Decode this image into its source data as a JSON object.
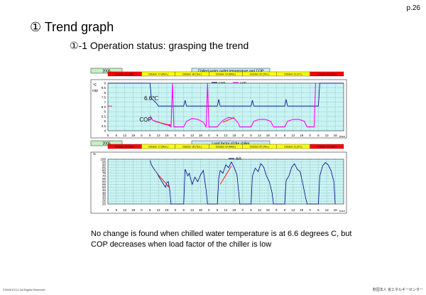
{
  "page_number": "p.26",
  "title": "① Trend graph",
  "subtitle": "①-1 Operation status: grasping the trend",
  "conclusion": "No change is found when chilled water temperature is at 6.6 degrees C, but COP decreases when load factor of the chiller is low",
  "copyright": "©2008 ECCJ All Rights Reserved",
  "org": "財団法人 省エネルギーセンター",
  "colors": {
    "weekday": "#ffff00",
    "weekend": "#ff0000",
    "year_box": "#c4f0c4",
    "title_box": "#ccecff",
    "plot_bg": "#c8f4f4",
    "cws_line": "#00008b",
    "cop_line": "#ff00ff",
    "annotation": "#ff0000"
  },
  "chart_data": [
    {
      "type": "line",
      "year": "2005",
      "title": "Chilled water outlet temperature and COP",
      "days": [
        "October 15 (Sat.)",
        "October 17 (Mon.)",
        "October 18 (Tue.)",
        "October 19 (Wed.)",
        "October 20 (Thu.)",
        "October 21 (Fri.)",
        "October 22 (Sat.)"
      ],
      "weekend_days": [
        0,
        6
      ],
      "ylabel_unit": "℃",
      "ylabel": "cop",
      "xlabel": "hour",
      "x_ticks": [
        "0",
        "6",
        "12",
        "18",
        "0",
        "6",
        "12",
        "18",
        "0",
        "6",
        "12",
        "18",
        "0",
        "6",
        "12",
        "18",
        "0",
        "6",
        "12",
        "18",
        "0",
        "6",
        "12",
        "18",
        "0",
        "6",
        "12",
        "18"
      ],
      "y_ticks": [
        "9",
        "8.5",
        "8",
        "7.5",
        "7",
        "6.5",
        "6",
        "5.5",
        "5",
        "4.5",
        "4"
      ],
      "ylim": [
        4,
        9
      ],
      "legend": [
        "CWS",
        "COP"
      ],
      "annotations": [
        "6.6℃",
        "COP"
      ],
      "series": [
        {
          "name": "CWS",
          "points": [
            [
              0,
              9
            ],
            [
              24,
              9
            ],
            [
              30,
              9
            ],
            [
              31,
              7.4
            ],
            [
              34,
              7.0
            ],
            [
              36,
              6.6
            ],
            [
              48,
              6.6
            ],
            [
              54,
              6.6
            ],
            [
              55,
              7.2
            ],
            [
              56,
              6.6
            ],
            [
              72,
              6.6
            ],
            [
              78,
              6.6
            ],
            [
              79,
              7.3
            ],
            [
              80,
              6.6
            ],
            [
              96,
              6.6
            ],
            [
              102,
              6.6
            ],
            [
              103,
              7.2
            ],
            [
              104,
              6.6
            ],
            [
              120,
              6.6
            ],
            [
              126,
              6.6
            ],
            [
              127,
              7.3
            ],
            [
              128,
              6.6
            ],
            [
              144,
              6.6
            ],
            [
              150,
              6.6
            ],
            [
              151,
              9
            ],
            [
              168,
              9
            ]
          ]
        },
        {
          "name": "COP",
          "points": [
            [
              30,
              5.6
            ],
            [
              32,
              5.1
            ],
            [
              36,
              4.9
            ],
            [
              40,
              4.7
            ],
            [
              43,
              4.6
            ],
            [
              45,
              4.4
            ],
            [
              46,
              9
            ],
            [
              47,
              4.4
            ],
            [
              54,
              4.4
            ],
            [
              56,
              5.0
            ],
            [
              60,
              5.3
            ],
            [
              64,
              5.2
            ],
            [
              68,
              4.9
            ],
            [
              70,
              4.4
            ],
            [
              71,
              9
            ],
            [
              72,
              4.4
            ],
            [
              78,
              4.4
            ],
            [
              80,
              4.8
            ],
            [
              82,
              5.1
            ],
            [
              86,
              5.4
            ],
            [
              90,
              5.3
            ],
            [
              93,
              4.8
            ],
            [
              94,
              4.4
            ],
            [
              102,
              4.4
            ],
            [
              104,
              5.0
            ],
            [
              108,
              5.2
            ],
            [
              112,
              5.2
            ],
            [
              116,
              5.0
            ],
            [
              118,
              4.4
            ],
            [
              126,
              4.4
            ],
            [
              128,
              5.0
            ],
            [
              132,
              5.2
            ],
            [
              136,
              5.2
            ],
            [
              140,
              5.0
            ],
            [
              142,
              4.4
            ],
            [
              147,
              4.4
            ],
            [
              148,
              9
            ]
          ]
        }
      ]
    },
    {
      "type": "line",
      "year": "2005",
      "title": "Load factor of the chiller",
      "days": [
        "October 15 (Sat.)",
        "October 17 (Mon.)",
        "October 18 (Tue.)",
        "October 19 (Wed.)",
        "October 20 (Thu.)",
        "October 21 (Fri.)",
        "October 22 (Sat.)"
      ],
      "weekend_days": [
        0,
        6
      ],
      "ylabel_unit": "%",
      "xlabel": "hour",
      "x_ticks": [
        "0",
        "6",
        "12",
        "18",
        "0",
        "6",
        "12",
        "18",
        "0",
        "6",
        "12",
        "18",
        "0",
        "6",
        "12",
        "18",
        "0",
        "6",
        "12",
        "18",
        "0",
        "6",
        "12",
        "18",
        "0",
        "6",
        "12",
        "18"
      ],
      "y_ticks": [
        "100",
        "95",
        "90",
        "85",
        "80",
        "75",
        "70",
        "65",
        "60",
        "55",
        "50",
        "45",
        "40",
        "35",
        "30",
        "25",
        "20"
      ],
      "ylim": [
        20,
        100
      ],
      "legend": [
        "負荷"
      ],
      "series": [
        {
          "name": "負荷",
          "points": [
            [
              30,
              98
            ],
            [
              31,
              90
            ],
            [
              33,
              82
            ],
            [
              35,
              75
            ],
            [
              37,
              66
            ],
            [
              39,
              58
            ],
            [
              41,
              50
            ],
            [
              42,
              58
            ],
            [
              43,
              60
            ],
            [
              44,
              45
            ],
            [
              45,
              20
            ],
            [
              54,
              20
            ],
            [
              55,
              82
            ],
            [
              57,
              70
            ],
            [
              58,
              75
            ],
            [
              60,
              55
            ],
            [
              62,
              68
            ],
            [
              64,
              60
            ],
            [
              66,
              72
            ],
            [
              68,
              80
            ],
            [
              70,
              45
            ],
            [
              71,
              20
            ],
            [
              78,
              20
            ],
            [
              79,
              65
            ],
            [
              80,
              80
            ],
            [
              82,
              75
            ],
            [
              84,
              90
            ],
            [
              86,
              85
            ],
            [
              88,
              95
            ],
            [
              90,
              85
            ],
            [
              92,
              72
            ],
            [
              94,
              20
            ],
            [
              102,
              20
            ],
            [
              103,
              70
            ],
            [
              105,
              84
            ],
            [
              107,
              78
            ],
            [
              109,
              92
            ],
            [
              111,
              86
            ],
            [
              113,
              70
            ],
            [
              115,
              60
            ],
            [
              117,
              40
            ],
            [
              118,
              20
            ],
            [
              126,
              20
            ],
            [
              127,
              62
            ],
            [
              129,
              70
            ],
            [
              131,
              86
            ],
            [
              133,
              92
            ],
            [
              135,
              82
            ],
            [
              137,
              78
            ],
            [
              139,
              55
            ],
            [
              141,
              30
            ],
            [
              142,
              20
            ],
            [
              150,
              20
            ],
            [
              151,
              70
            ],
            [
              153,
              88
            ],
            [
              155,
              94
            ],
            [
              157,
              90
            ],
            [
              159,
              80
            ],
            [
              161,
              60
            ],
            [
              162,
              20
            ]
          ]
        }
      ]
    }
  ]
}
